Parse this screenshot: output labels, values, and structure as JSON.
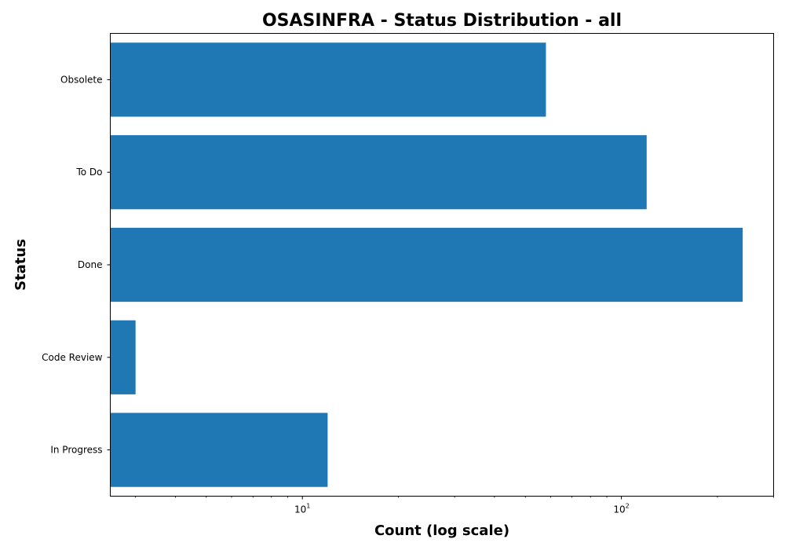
{
  "chart_data": {
    "type": "bar",
    "orientation": "horizontal",
    "title": "OSASINFRA - Status Distribution - all",
    "xlabel": "Count (log scale)",
    "ylabel": "Status",
    "x_scale": "log",
    "xlim": [
      2.5,
      300
    ],
    "x_ticks": [
      {
        "value": 10,
        "base": "10",
        "exp": "1"
      },
      {
        "value": 100,
        "base": "10",
        "exp": "2"
      }
    ],
    "categories": [
      "Obsolete",
      "To Do",
      "Done",
      "Code Review",
      "In Progress"
    ],
    "values": [
      58,
      120,
      240,
      3,
      12
    ],
    "bar_color": "#1f77b4",
    "grid": false
  }
}
